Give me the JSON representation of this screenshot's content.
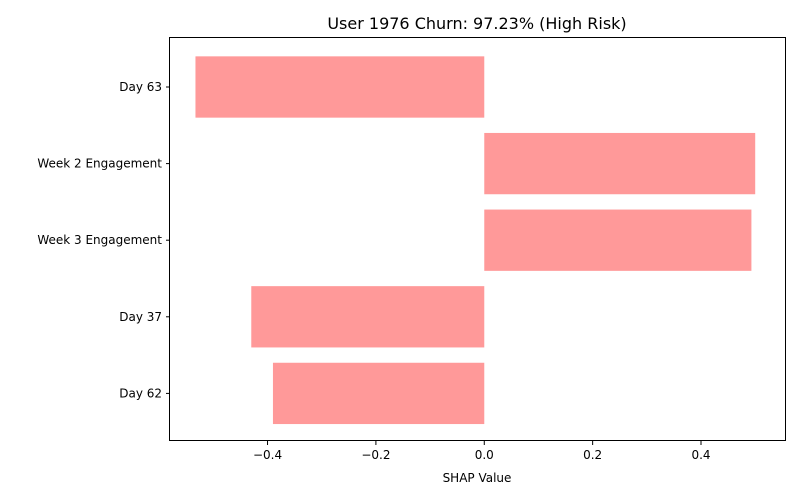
{
  "chart_data": {
    "type": "bar",
    "orientation": "horizontal",
    "title": "User 1976 Churn: 97.23% (High Risk)",
    "xlabel": "SHAP Value",
    "ylabel": "",
    "categories": [
      "Day 63",
      "Week 2 Engagement",
      "Week 3 Engagement",
      "Day 37",
      "Day 62"
    ],
    "values": [
      -0.533,
      0.5,
      0.493,
      -0.43,
      -0.39
    ],
    "bar_color": "#ff9999",
    "xlim": [
      -0.58,
      0.555
    ],
    "xticks": [
      -0.4,
      -0.2,
      0.0,
      0.2,
      0.4
    ],
    "xtick_labels": [
      "−0.4",
      "−0.2",
      "0.0",
      "0.2",
      "0.4"
    ],
    "grid": false,
    "legend": "none"
  }
}
